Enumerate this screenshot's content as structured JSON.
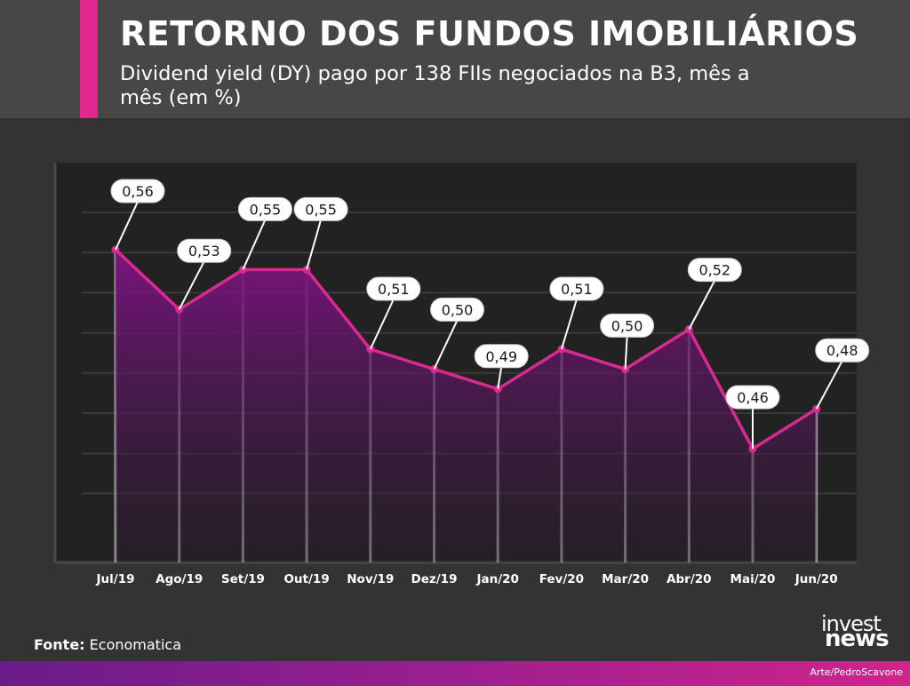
{
  "header": {
    "title": "RETORNO DOS FUNDOS IMOBILIÁRIOS",
    "subtitle": "Dividend yield (DY) pago por 138 FIIs negociados na B3, mês a mês (em %)"
  },
  "chart_data": {
    "type": "area",
    "title": "RETORNO DOS FUNDOS IMOBILIÁRIOS",
    "subtitle": "Dividend yield (DY) pago por 138 FIIs negociados na B3, mês a mês (em %)",
    "categories": [
      "Jul/19",
      "Ago/19",
      "Set/19",
      "Out/19",
      "Nov/19",
      "Dez/19",
      "Jan/20",
      "Fev/20",
      "Mar/20",
      "Abr/20",
      "Mai/20",
      "Jun/20"
    ],
    "values": [
      0.56,
      0.53,
      0.55,
      0.55,
      0.51,
      0.5,
      0.49,
      0.51,
      0.5,
      0.52,
      0.46,
      0.48
    ],
    "labels": [
      "0,56",
      "0,53",
      "0,55",
      "0,55",
      "0,51",
      "0,50",
      "0,49",
      "0,51",
      "0,50",
      "0,52",
      "0,46",
      "0,48"
    ],
    "xlabel": "",
    "ylabel": "",
    "ylim": [
      0.4,
      0.6
    ],
    "grid": true,
    "colors": {
      "line": "#d92a8f",
      "fill_top": "#7d1480",
      "fill_bottom": "#2a1a30",
      "plot_bg": "#222222"
    }
  },
  "footer": {
    "source_label": "Fonte:",
    "source_value": "Economatica",
    "logo_line1": "invest",
    "logo_line2": "news",
    "credit": "Arte/PedroScavone"
  }
}
